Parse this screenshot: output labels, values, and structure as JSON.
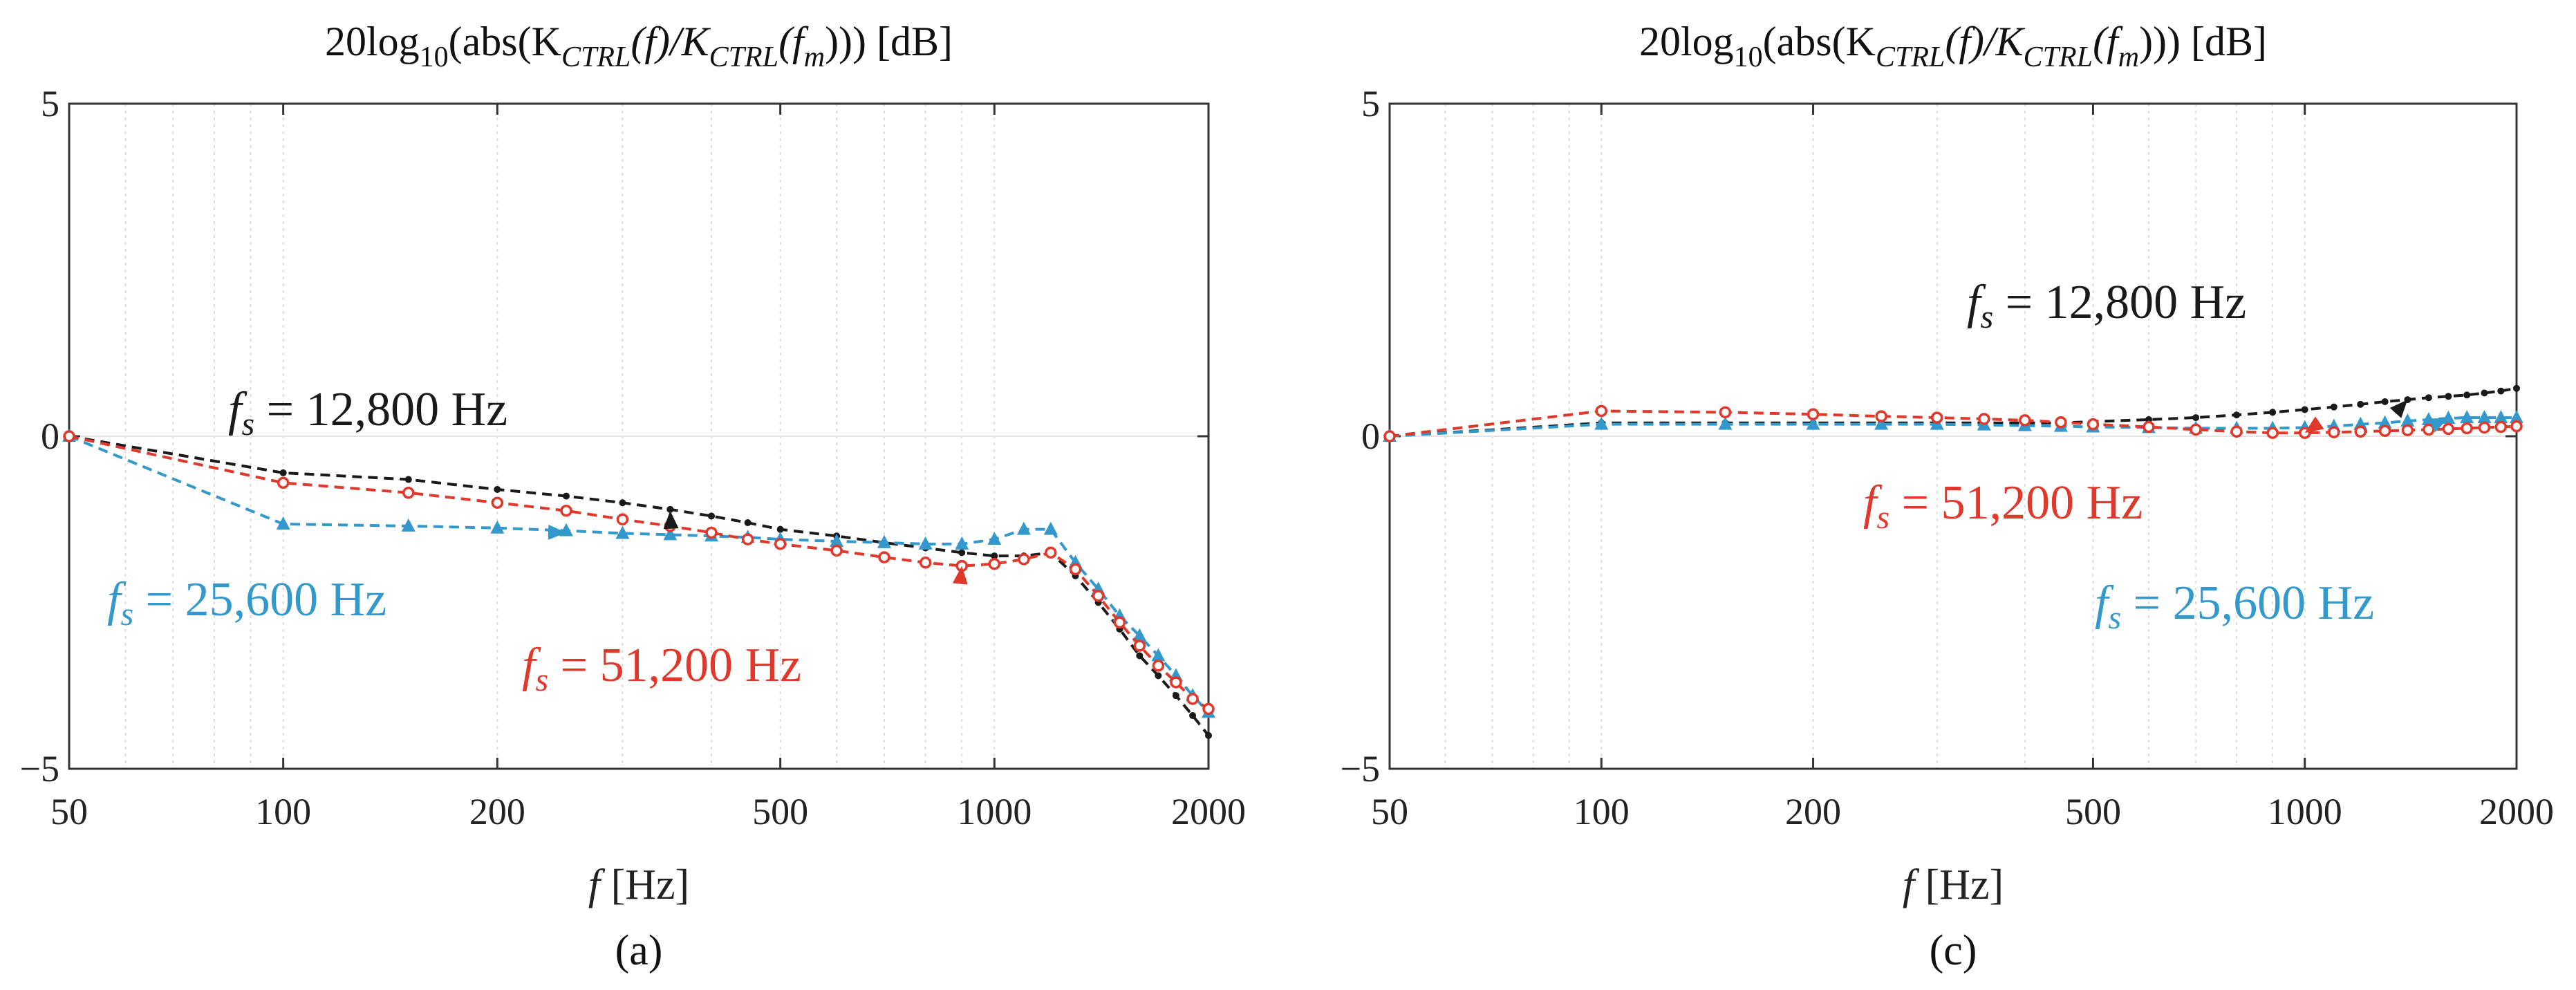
{
  "chart_data": [
    {
      "type": "line",
      "panel_label": "(a)",
      "title": {
        "main": "20log",
        "sub": "10",
        "rest": "(abs(K",
        "ctrl1": "CTRL",
        "f": "(f)/K",
        "ctrl2": "CTRL",
        "fm1": "(f",
        "m": "m",
        "end": "))) [dB]"
      },
      "xlabel": {
        "var": "f",
        "unit": " [Hz]"
      },
      "xscale": "log",
      "xlim": [
        50,
        2000
      ],
      "ylim": [
        -5,
        5
      ],
      "xticks": [
        50,
        100,
        200,
        500,
        1000,
        2000
      ],
      "xtick_labels": [
        "50",
        "100",
        "200",
        "500",
        "1000",
        "2000"
      ],
      "yticks": [
        -5,
        0,
        5
      ],
      "ytick_labels": [
        "−5",
        "0",
        "5"
      ],
      "grid": true,
      "series": [
        {
          "name": "fs = 12,800 Hz",
          "color": "#1a1a1a",
          "marker": "dot",
          "x": [
            50,
            100,
            150,
            200,
            250,
            300,
            350,
            400,
            450,
            500,
            600,
            700,
            800,
            900,
            1000,
            1100,
            1200,
            1300,
            1400,
            1500,
            1600,
            1700,
            1800,
            1900,
            2000
          ],
          "y": [
            0,
            -0.55,
            -0.65,
            -0.8,
            -0.9,
            -1.0,
            -1.1,
            -1.2,
            -1.3,
            -1.4,
            -1.5,
            -1.6,
            -1.68,
            -1.75,
            -1.8,
            -1.8,
            -1.75,
            -2.1,
            -2.5,
            -2.9,
            -3.3,
            -3.6,
            -3.9,
            -4.2,
            -4.5
          ]
        },
        {
          "name": "fs = 25,600 Hz",
          "color": "#3399cc",
          "marker": "triangle",
          "x": [
            50,
            100,
            150,
            200,
            250,
            300,
            350,
            400,
            450,
            500,
            600,
            700,
            800,
            900,
            1000,
            1100,
            1200,
            1300,
            1400,
            1500,
            1600,
            1700,
            1800,
            1900,
            2000
          ],
          "y": [
            0,
            -1.32,
            -1.35,
            -1.38,
            -1.42,
            -1.46,
            -1.48,
            -1.5,
            -1.52,
            -1.55,
            -1.58,
            -1.6,
            -1.62,
            -1.62,
            -1.55,
            -1.4,
            -1.4,
            -1.9,
            -2.3,
            -2.7,
            -3.0,
            -3.3,
            -3.6,
            -3.9,
            -4.15
          ]
        },
        {
          "name": "fs = 51,200 Hz",
          "color": "#e0382a",
          "marker": "circle",
          "x": [
            50,
            100,
            150,
            200,
            250,
            300,
            350,
            400,
            450,
            500,
            600,
            700,
            800,
            900,
            1000,
            1100,
            1200,
            1300,
            1400,
            1500,
            1600,
            1700,
            1800,
            1900,
            2000
          ],
          "y": [
            0,
            -0.7,
            -0.85,
            -1.0,
            -1.12,
            -1.25,
            -1.35,
            -1.45,
            -1.55,
            -1.62,
            -1.72,
            -1.82,
            -1.9,
            -1.95,
            -1.92,
            -1.85,
            -1.75,
            -2.0,
            -2.4,
            -2.8,
            -3.15,
            -3.45,
            -3.7,
            -3.95,
            -4.1
          ]
        }
      ],
      "annotations": [
        {
          "series": 0,
          "prefix": "f",
          "sub": "s",
          "text": " = 12,800 Hz",
          "color": "#1a1a1a",
          "at": [
            350,
            -1.12
          ]
        },
        {
          "series": 1,
          "prefix": "f",
          "sub": "s",
          "text": " = 25,600 Hz",
          "color": "#3399cc",
          "at": [
            250,
            -1.45
          ]
        },
        {
          "series": 2,
          "prefix": "f",
          "sub": "s",
          "text": " = 51,200 Hz",
          "color": "#e0382a",
          "at": [
            900,
            -1.95
          ]
        }
      ]
    },
    {
      "type": "line",
      "panel_label": "(c)",
      "title": {
        "main": "20log",
        "sub": "10",
        "rest": "(abs(K",
        "ctrl1": "CTRL",
        "f": "(f)/K",
        "ctrl2": "CTRL",
        "fm1": "(f",
        "m": "m",
        "end": "))) [dB]"
      },
      "xlabel": {
        "var": "f",
        "unit": " [Hz]"
      },
      "xscale": "log",
      "xlim": [
        50,
        2000
      ],
      "ylim": [
        -5,
        5
      ],
      "xticks": [
        50,
        100,
        200,
        500,
        1000,
        2000
      ],
      "xtick_labels": [
        "50",
        "100",
        "200",
        "500",
        "1000",
        "2000"
      ],
      "yticks": [
        -5,
        0,
        5
      ],
      "ytick_labels": [
        "−5",
        "0",
        "5"
      ],
      "grid": true,
      "series": [
        {
          "name": "fs = 12,800 Hz",
          "color": "#1a1a1a",
          "marker": "dot",
          "x": [
            50,
            100,
            150,
            200,
            250,
            300,
            350,
            400,
            450,
            500,
            600,
            700,
            800,
            900,
            1000,
            1100,
            1200,
            1300,
            1400,
            1500,
            1600,
            1700,
            1800,
            1900,
            2000
          ],
          "y": [
            0,
            0.2,
            0.2,
            0.2,
            0.2,
            0.2,
            0.2,
            0.2,
            0.2,
            0.22,
            0.25,
            0.28,
            0.32,
            0.36,
            0.4,
            0.44,
            0.48,
            0.52,
            0.55,
            0.58,
            0.6,
            0.62,
            0.65,
            0.68,
            0.72
          ]
        },
        {
          "name": "fs = 25,600 Hz",
          "color": "#3399cc",
          "marker": "triangle",
          "x": [
            50,
            100,
            150,
            200,
            250,
            300,
            350,
            400,
            450,
            500,
            600,
            700,
            800,
            900,
            1000,
            1100,
            1200,
            1300,
            1400,
            1500,
            1600,
            1700,
            1800,
            1900,
            2000
          ],
          "y": [
            0,
            0.18,
            0.18,
            0.18,
            0.18,
            0.18,
            0.17,
            0.16,
            0.15,
            0.14,
            0.13,
            0.12,
            0.12,
            0.12,
            0.13,
            0.15,
            0.18,
            0.2,
            0.23,
            0.25,
            0.27,
            0.28,
            0.28,
            0.28,
            0.28
          ]
        },
        {
          "name": "fs = 51,200 Hz",
          "color": "#e0382a",
          "marker": "circle",
          "x": [
            50,
            100,
            150,
            200,
            250,
            300,
            350,
            400,
            450,
            500,
            600,
            700,
            800,
            900,
            1000,
            1100,
            1200,
            1300,
            1400,
            1500,
            1600,
            1700,
            1800,
            1900,
            2000
          ],
          "y": [
            0,
            0.38,
            0.36,
            0.33,
            0.3,
            0.28,
            0.26,
            0.24,
            0.21,
            0.18,
            0.14,
            0.1,
            0.07,
            0.05,
            0.05,
            0.06,
            0.07,
            0.08,
            0.09,
            0.1,
            0.11,
            0.12,
            0.13,
            0.14,
            0.15
          ]
        }
      ],
      "annotations": [
        {
          "series": 0,
          "prefix": "f",
          "sub": "s",
          "text": " = 12,800 Hz",
          "color": "#1a1a1a",
          "at": [
            1400,
            0.55
          ]
        },
        {
          "series": 2,
          "prefix": "f",
          "sub": "s",
          "text": " = 51,200 Hz",
          "color": "#e0382a",
          "at": [
            1000,
            0.05
          ]
        },
        {
          "series": 1,
          "prefix": "f",
          "sub": "s",
          "text": " = 25,600 Hz",
          "color": "#3399cc",
          "at": [
            1600,
            0.27
          ]
        }
      ]
    }
  ]
}
